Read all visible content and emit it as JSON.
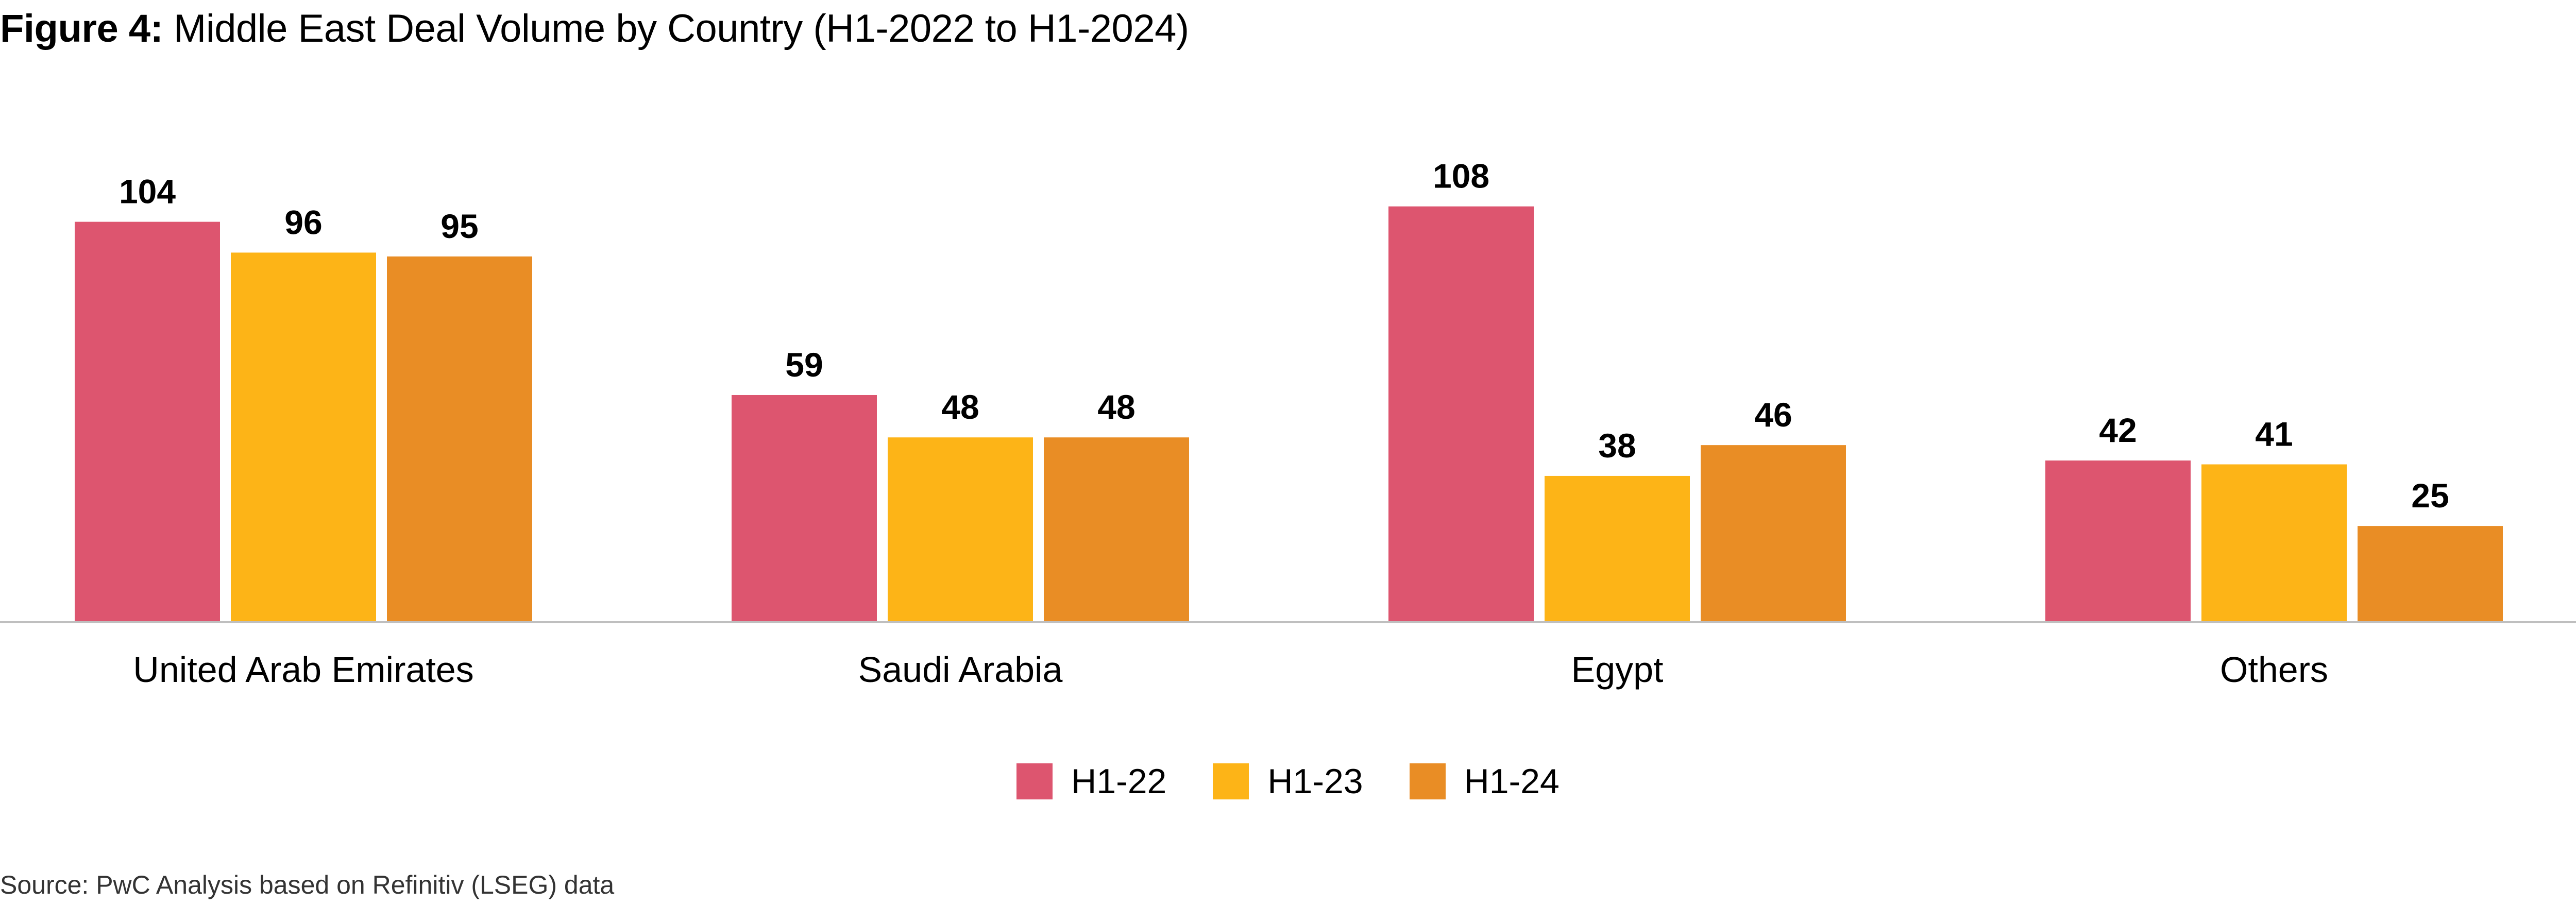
{
  "title": {
    "figure_label": "Figure 4:",
    "text": "Middle East Deal Volume by Country (H1-2022 to H1-2024)"
  },
  "source": "Source: PwC Analysis based on Refinitiv (LSEG) data",
  "chart_data": {
    "type": "bar",
    "title": "Middle East Deal Volume by Country (H1-2022 to H1-2024)",
    "xlabel": "",
    "ylabel": "",
    "ylim": [
      0,
      120
    ],
    "grid": false,
    "legend_position": "bottom-center",
    "categories": [
      "United Arab Emirates",
      "Saudi Arabia",
      "Egypt",
      "Others"
    ],
    "series": [
      {
        "name": "H1-22",
        "color": "#DD556F",
        "values": [
          104,
          59,
          108,
          42
        ]
      },
      {
        "name": "H1-23",
        "color": "#FDB417",
        "values": [
          96,
          48,
          38,
          41
        ]
      },
      {
        "name": "H1-24",
        "color": "#E98D25",
        "values": [
          95,
          48,
          46,
          25
        ]
      }
    ]
  }
}
